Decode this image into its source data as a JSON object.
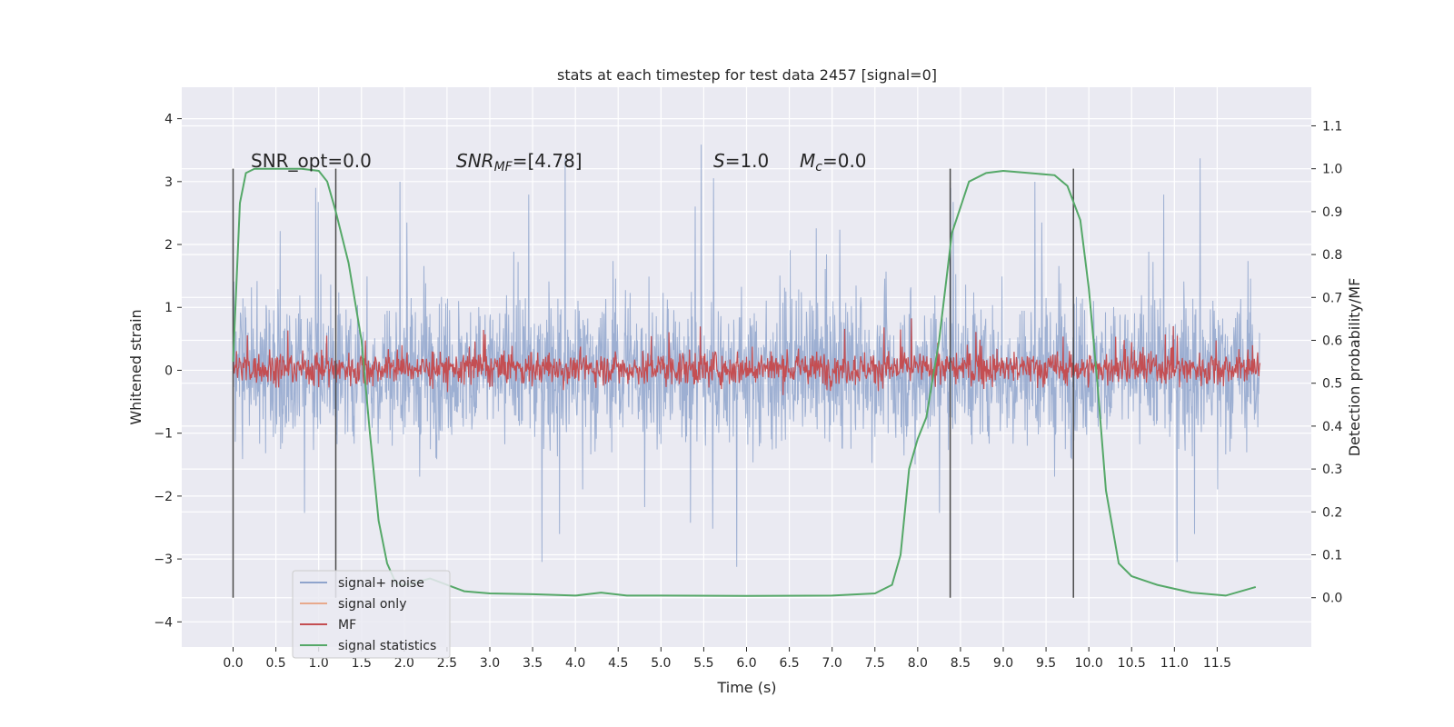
{
  "chart_data": {
    "type": "line",
    "title": "stats at each timestep for test data 2457 [signal=0]",
    "xlabel": "Time (s)",
    "ylabel": "Whitened strain",
    "y2label": "Detection probability/MF",
    "xlim": [
      -0.6,
      12.6
    ],
    "ylim": [
      -4.4,
      4.5
    ],
    "y2lim": [
      -0.115,
      1.19
    ],
    "x_ticks": [
      "0.0",
      "0.5",
      "1.0",
      "1.5",
      "2.0",
      "2.5",
      "3.0",
      "3.5",
      "4.0",
      "4.5",
      "5.0",
      "5.5",
      "6.0",
      "6.5",
      "7.0",
      "7.5",
      "8.0",
      "8.5",
      "9.0",
      "9.5",
      "10.0",
      "10.5",
      "11.0",
      "11.5"
    ],
    "y_ticks": [
      "4",
      "3",
      "2",
      "1",
      "0",
      "−1",
      "−2",
      "−3",
      "−4"
    ],
    "y2_ticks": [
      "1.1",
      "1.0",
      "0.9",
      "0.8",
      "0.7",
      "0.6",
      "0.5",
      "0.4",
      "0.3",
      "0.2",
      "0.1",
      "0.0"
    ],
    "grid": true,
    "legend_position": "lower-left",
    "annotations": {
      "snr_opt": "SNR_opt=0.0",
      "snr_mf_main": "SNR",
      "snr_mf_sub": "MF",
      "snr_mf_value": "=[4.78]",
      "s_main": "S",
      "s_value": "=1.0",
      "mc_main": "M",
      "mc_sub": "c",
      "mc_value": "=0.0"
    },
    "vertical_markers": [
      0.0,
      1.2,
      8.38,
      9.82
    ],
    "series": [
      {
        "name": "signal+ noise",
        "color": "#8fa4cc",
        "axis": "left",
        "description_range": [
          -3.1,
          4.1
        ],
        "x_range": [
          0.0,
          12.0
        ]
      },
      {
        "name": "signal only",
        "color": "#e8a98c",
        "axis": "left",
        "values": []
      },
      {
        "name": "MF",
        "color": "#c44e52",
        "axis": "right",
        "x_range": [
          0.0,
          12.0
        ]
      },
      {
        "name": "signal statistics",
        "color": "#55a868",
        "axis": "right",
        "x": [
          0.0,
          0.08,
          0.15,
          0.25,
          0.4,
          0.6,
          0.8,
          1.0,
          1.1,
          1.2,
          1.35,
          1.5,
          1.6,
          1.7,
          1.8,
          1.9,
          2.0,
          2.1,
          2.3,
          2.5,
          2.7,
          3.0,
          3.5,
          4.0,
          4.3,
          4.6,
          5.0,
          6.0,
          7.0,
          7.5,
          7.7,
          7.8,
          7.9,
          8.0,
          8.1,
          8.25,
          8.4,
          8.6,
          8.8,
          9.0,
          9.3,
          9.6,
          9.75,
          9.9,
          10.0,
          10.1,
          10.2,
          10.35,
          10.5,
          10.8,
          11.2,
          11.6,
          11.95
        ],
        "y": [
          0.55,
          0.92,
          0.99,
          1.0,
          1.0,
          1.0,
          1.0,
          0.995,
          0.97,
          0.9,
          0.78,
          0.6,
          0.38,
          0.18,
          0.08,
          0.035,
          0.03,
          0.033,
          0.045,
          0.03,
          0.015,
          0.01,
          0.008,
          0.005,
          0.012,
          0.005,
          0.005,
          0.004,
          0.005,
          0.01,
          0.03,
          0.1,
          0.3,
          0.37,
          0.42,
          0.6,
          0.85,
          0.97,
          0.99,
          0.995,
          0.99,
          0.985,
          0.96,
          0.88,
          0.72,
          0.5,
          0.25,
          0.08,
          0.05,
          0.03,
          0.012,
          0.005,
          0.025
        ]
      }
    ]
  }
}
